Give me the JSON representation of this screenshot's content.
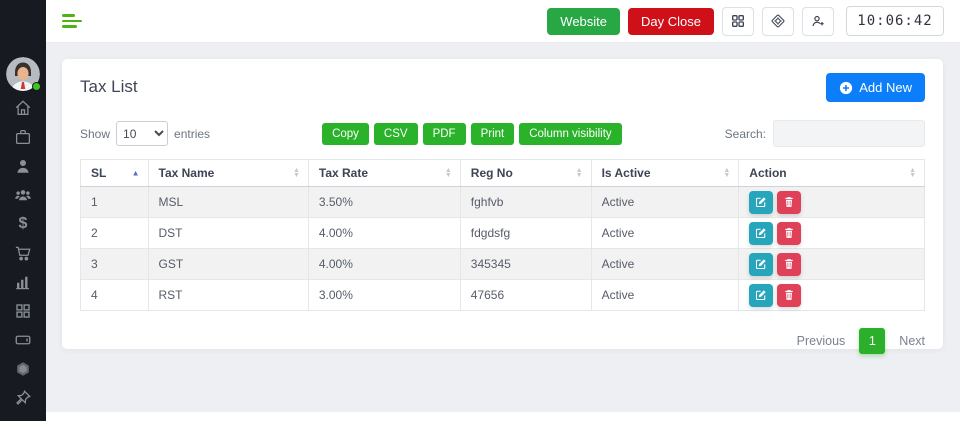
{
  "topbar": {
    "website_button": "Website",
    "day_close_button": "Day Close",
    "icons": [
      "grid-icon",
      "scan-target-icon",
      "add-user-icon"
    ],
    "clock": "10:06:42"
  },
  "sidebar": {
    "avatar": "user-avatar",
    "status": "online",
    "items": [
      "home-icon",
      "briefcase-icon",
      "user-icon",
      "users-group-icon",
      "dollar-icon",
      "cart-icon",
      "bar-chart-icon",
      "apps-grid-icon",
      "tablet-icon",
      "hexagon-icon",
      "pin-icon"
    ]
  },
  "page": {
    "title": "Tax List",
    "add_new_button": "Add New"
  },
  "table_controls": {
    "show_label": "Show",
    "page_length": "10",
    "entries_label": "entries",
    "export_buttons": [
      "Copy",
      "CSV",
      "PDF",
      "Print",
      "Column visibility"
    ],
    "search_label": "Search:",
    "search_value": ""
  },
  "table": {
    "columns": [
      "SL",
      "Tax Name",
      "Tax Rate",
      "Reg No",
      "Is Active",
      "Action"
    ],
    "sorted_column": "SL",
    "sort_direction": "asc",
    "rows": [
      {
        "sl": "1",
        "tax_name": "MSL",
        "tax_rate": "3.50%",
        "reg_no": "fghfvb",
        "is_active": "Active"
      },
      {
        "sl": "2",
        "tax_name": "DST",
        "tax_rate": "4.00%",
        "reg_no": "fdgdsfg",
        "is_active": "Active"
      },
      {
        "sl": "3",
        "tax_name": "GST",
        "tax_rate": "4.00%",
        "reg_no": "345345",
        "is_active": "Active"
      },
      {
        "sl": "4",
        "tax_name": "RST",
        "tax_rate": "3.00%",
        "reg_no": "47656",
        "is_active": "Active"
      }
    ]
  },
  "pagination": {
    "previous_label": "Previous",
    "current_page": "1",
    "next_label": "Next"
  },
  "colors": {
    "sidebar_bg": "#171a20",
    "green_button": "#27a845",
    "red_button": "#cf1019",
    "datatable_button_green": "#2bb22b",
    "add_new_blue": "#0d7ef9",
    "edit_teal": "#27a6bb",
    "delete_red": "#df4258",
    "pagination_green": "#2cb02c",
    "sort_active_blue": "#5a68c9",
    "content_bg": "#edeff2"
  }
}
